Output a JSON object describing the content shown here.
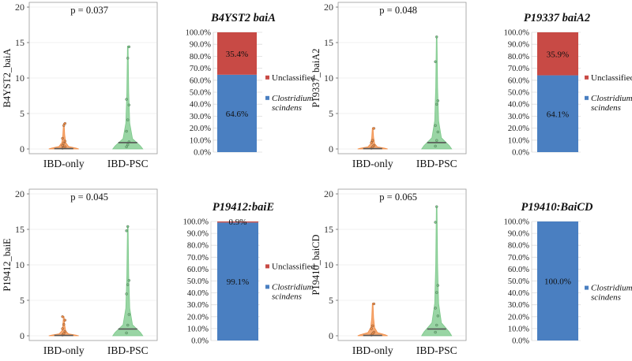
{
  "chart_data": [
    {
      "type": "violin",
      "id": "violin-b4yst2",
      "ylabel": "B4YST2_baiA",
      "annotation": "p = 0.037",
      "categories": [
        "IBD-only",
        "IBD-PSC"
      ],
      "ylim": [
        0,
        20
      ],
      "yticks": [
        0,
        5,
        10,
        15,
        20
      ],
      "groups": [
        {
          "name": "IBD-only",
          "color": "#f28e48",
          "median": 0.05,
          "max": 3.6,
          "points": [
            0.1,
            0.2,
            0.3,
            0.5,
            0.8,
            1.1,
            1.5,
            3.3,
            3.6
          ]
        },
        {
          "name": "IBD-PSC",
          "color": "#7cc98a",
          "median": 0.9,
          "max": 14.5,
          "points": [
            0.3,
            0.6,
            1.0,
            2.5,
            4.1,
            6.2,
            7.0,
            12.8,
            14.4
          ]
        }
      ]
    },
    {
      "type": "stacked-bar",
      "id": "bar-b4yst2",
      "title": "B4YST2 baiA",
      "yticks": [
        "0.0%",
        "10.0%",
        "20.0%",
        "30.0%",
        "40.0%",
        "50.0%",
        "60.0%",
        "70.0%",
        "80.0%",
        "90.0%",
        "100.0%"
      ],
      "segments": [
        {
          "name": "Clostridium scindens",
          "value": 64.6,
          "label": "64.6%",
          "color": "#4a7fc1"
        },
        {
          "name": "Unclassified",
          "value": 35.4,
          "label": "35.4%",
          "color": "#c84a45"
        }
      ],
      "legend": [
        {
          "line1": "Unclassified",
          "line2": "",
          "color": "#c84a45",
          "italic": false
        },
        {
          "line1": "Clostridium",
          "line2": "scindens",
          "color": "#4a7fc1",
          "italic": true
        }
      ]
    },
    {
      "type": "violin",
      "id": "violin-p19337",
      "ylabel": "P19337_baiA2",
      "annotation": "p = 0.048",
      "categories": [
        "IBD-only",
        "IBD-PSC"
      ],
      "ylim": [
        0,
        20
      ],
      "yticks": [
        0,
        5,
        10,
        15,
        20
      ],
      "groups": [
        {
          "name": "IBD-only",
          "color": "#f28e48",
          "median": 0.05,
          "max": 3.0,
          "points": [
            0.1,
            0.3,
            0.5,
            0.9,
            1.2,
            2.9
          ]
        },
        {
          "name": "IBD-PSC",
          "color": "#7cc98a",
          "median": 0.9,
          "max": 15.8,
          "points": [
            0.4,
            1.2,
            2.4,
            3.3,
            6.3,
            6.8,
            12.3,
            15.8
          ]
        }
      ]
    },
    {
      "type": "stacked-bar",
      "id": "bar-p19337",
      "title": "P19337 baiA2",
      "yticks": [
        "0.0%",
        "10.0%",
        "20.0%",
        "30.0%",
        "40.0%",
        "50.0%",
        "60.0%",
        "70.0%",
        "80.0%",
        "90.0%",
        "100.0%"
      ],
      "segments": [
        {
          "name": "Clostridium scindens",
          "value": 64.1,
          "label": "64.1%",
          "color": "#4a7fc1"
        },
        {
          "name": "Unclassified",
          "value": 35.9,
          "label": "35.9%",
          "color": "#c84a45"
        }
      ],
      "legend": [
        {
          "line1": "Unclassified",
          "line2": "",
          "color": "#c84a45",
          "italic": false
        },
        {
          "line1": "Clostridium",
          "line2": "scindens",
          "color": "#4a7fc1",
          "italic": true
        }
      ]
    },
    {
      "type": "violin",
      "id": "violin-p19412",
      "ylabel": "P19412_baiE",
      "annotation": "p = 0.045",
      "categories": [
        "IBD-only",
        "IBD-PSC"
      ],
      "ylim": [
        0,
        20
      ],
      "yticks": [
        0,
        5,
        10,
        15,
        20
      ],
      "groups": [
        {
          "name": "IBD-only",
          "color": "#f28e48",
          "median": 0.05,
          "max": 2.7,
          "points": [
            0.1,
            0.3,
            0.6,
            1.0,
            1.6,
            2.2,
            2.7
          ]
        },
        {
          "name": "IBD-PSC",
          "color": "#7cc98a",
          "median": 0.95,
          "max": 15.5,
          "points": [
            0.4,
            1.5,
            3.0,
            5.9,
            7.2,
            7.8,
            14.8,
            15.4
          ]
        }
      ]
    },
    {
      "type": "stacked-bar",
      "id": "bar-p19412",
      "title": "P19412:baiE",
      "yticks": [
        "0.0%",
        "10.0%",
        "20.0%",
        "30.0%",
        "40.0%",
        "50.0%",
        "60.0%",
        "70.0%",
        "80.0%",
        "90.0%",
        "100.0%"
      ],
      "segments": [
        {
          "name": "Clostridium scindens",
          "value": 99.1,
          "label": "99.1%",
          "color": "#4a7fc1"
        },
        {
          "name": "Unclassified",
          "value": 0.9,
          "label": "0.9%",
          "color": "#c84a45"
        }
      ],
      "legend": [
        {
          "line1": "Unclassified",
          "line2": "",
          "color": "#c84a45",
          "italic": false
        },
        {
          "line1": "Clostridium",
          "line2": "scindens",
          "color": "#4a7fc1",
          "italic": true
        }
      ]
    },
    {
      "type": "violin",
      "id": "violin-p19410",
      "ylabel": "P19410_baiCD",
      "annotation": "p = 0.065",
      "categories": [
        "IBD-only",
        "IBD-PSC"
      ],
      "ylim": [
        0,
        20
      ],
      "yticks": [
        0,
        5,
        10,
        15,
        20
      ],
      "groups": [
        {
          "name": "IBD-only",
          "color": "#f28e48",
          "median": 0.05,
          "max": 4.6,
          "points": [
            0.1,
            0.3,
            0.5,
            1.0,
            1.4,
            4.5
          ]
        },
        {
          "name": "IBD-PSC",
          "color": "#7cc98a",
          "median": 0.95,
          "max": 18.3,
          "points": [
            0.5,
            1.5,
            2.8,
            3.9,
            6.1,
            7.1,
            16.0,
            18.2
          ]
        }
      ]
    },
    {
      "type": "stacked-bar",
      "id": "bar-p19410",
      "title": "P19410:BaiCD",
      "yticks": [
        "0.0%",
        "10.0%",
        "20.0%",
        "30.0%",
        "40.0%",
        "50.0%",
        "60.0%",
        "70.0%",
        "80.0%",
        "90.0%",
        "100.0%"
      ],
      "segments": [
        {
          "name": "Clostridium scindens",
          "value": 100.0,
          "label": "100.0%",
          "color": "#4a7fc1"
        }
      ],
      "legend": [
        {
          "line1": "Clostridium",
          "line2": "scindens",
          "color": "#4a7fc1",
          "italic": true
        }
      ]
    }
  ]
}
